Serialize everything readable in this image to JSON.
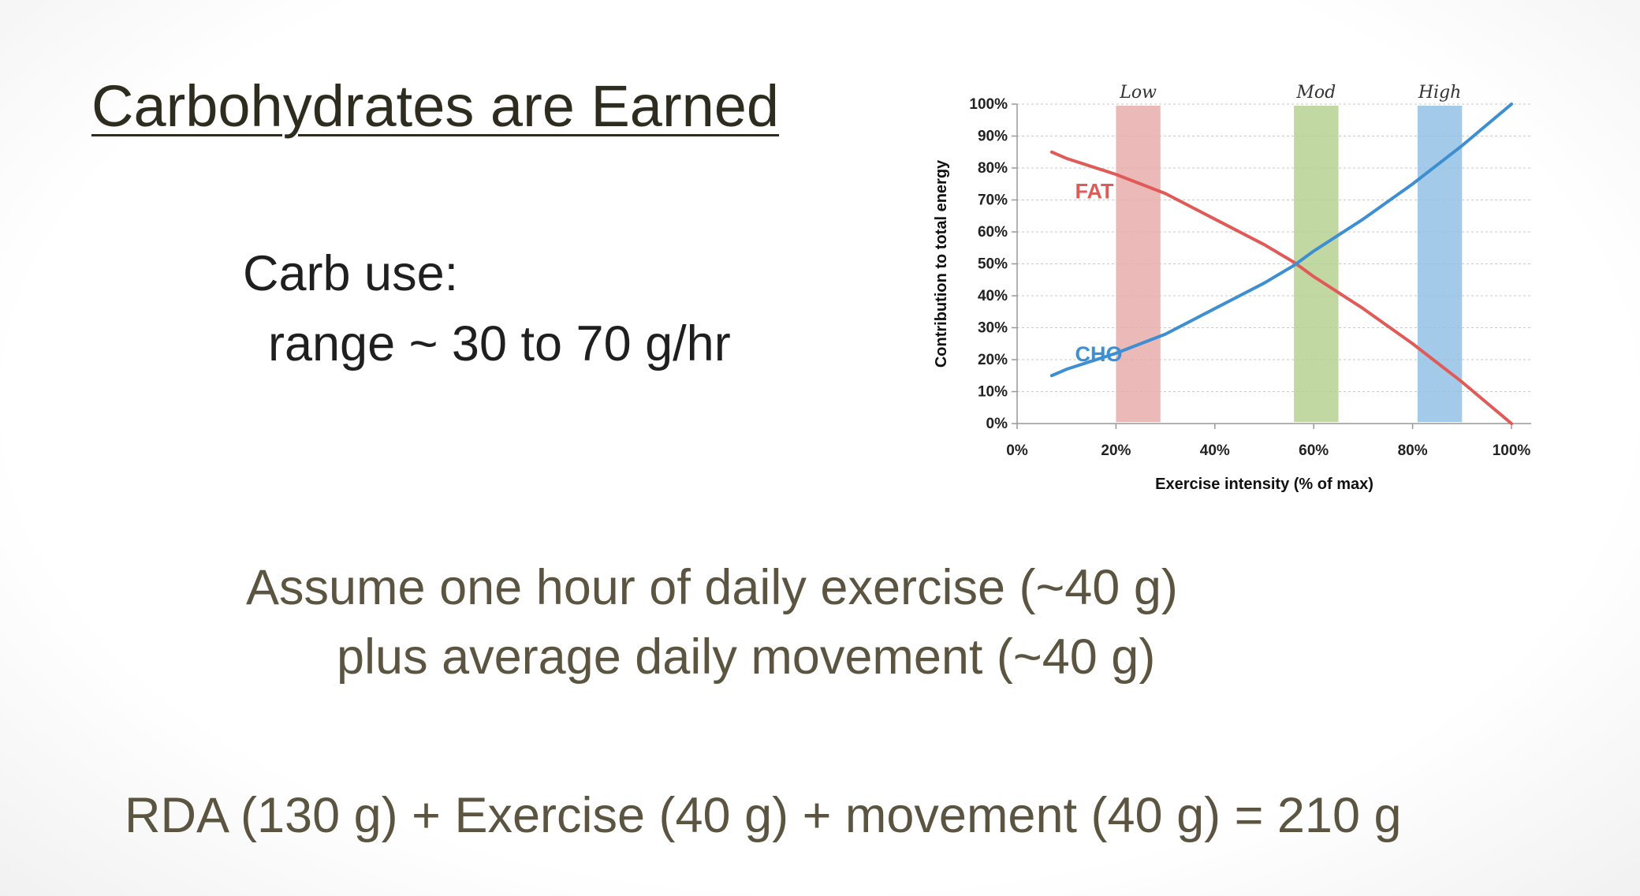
{
  "slide": {
    "title": "Carbohydrates are Earned",
    "carb_use_label": "Carb use:",
    "carb_range": "range ~ 30 to 70 g/hr",
    "assume_line": "Assume one hour of daily exercise (~40 g)",
    "plus_line": "plus average daily movement (~40 g)",
    "equation": "RDA (130 g) + Exercise (40 g) + movement (40 g) = 210 g",
    "colors": {
      "title": "#2e2b1f",
      "body": "#1f1f1f",
      "olive": "#5b5440"
    }
  },
  "chart_data": {
    "type": "line",
    "title": "",
    "xlabel": "Exercise intensity (% of max)",
    "ylabel": "Contribution to total energy",
    "xlim": [
      0,
      100
    ],
    "ylim": [
      0,
      100
    ],
    "grid": true,
    "x_ticks": [
      0,
      20,
      40,
      60,
      80,
      100
    ],
    "x_tick_labels": [
      "0%",
      "20%",
      "40%",
      "60%",
      "80%",
      "100%"
    ],
    "y_ticks": [
      0,
      10,
      20,
      30,
      40,
      50,
      60,
      70,
      80,
      90,
      100
    ],
    "y_tick_labels": [
      "0%",
      "10%",
      "20%",
      "30%",
      "40%",
      "50%",
      "60%",
      "70%",
      "80%",
      "90%",
      "100%"
    ],
    "series": [
      {
        "name": "FAT",
        "color": "#e05a58",
        "x": [
          7,
          10,
          20,
          30,
          40,
          50,
          56,
          60,
          70,
          80,
          90,
          100
        ],
        "y": [
          85,
          83,
          78,
          72,
          64,
          56,
          50.5,
          46,
          36,
          25,
          13,
          0
        ]
      },
      {
        "name": "CHO",
        "color": "#3d8fd1",
        "x": [
          7,
          10,
          20,
          30,
          40,
          50,
          56,
          60,
          70,
          80,
          90,
          100
        ],
        "y": [
          15,
          17,
          22,
          28,
          36,
          44,
          49.5,
          54,
          64,
          75,
          87,
          100
        ]
      }
    ],
    "bands": [
      {
        "label": "Low",
        "x_start": 20,
        "x_end": 29,
        "color": "#e8aaaa"
      },
      {
        "label": "Mod",
        "x_start": 56,
        "x_end": 65,
        "color": "#b4cf8f"
      },
      {
        "label": "High",
        "x_start": 81,
        "x_end": 90,
        "color": "#8fbfe4"
      }
    ]
  }
}
